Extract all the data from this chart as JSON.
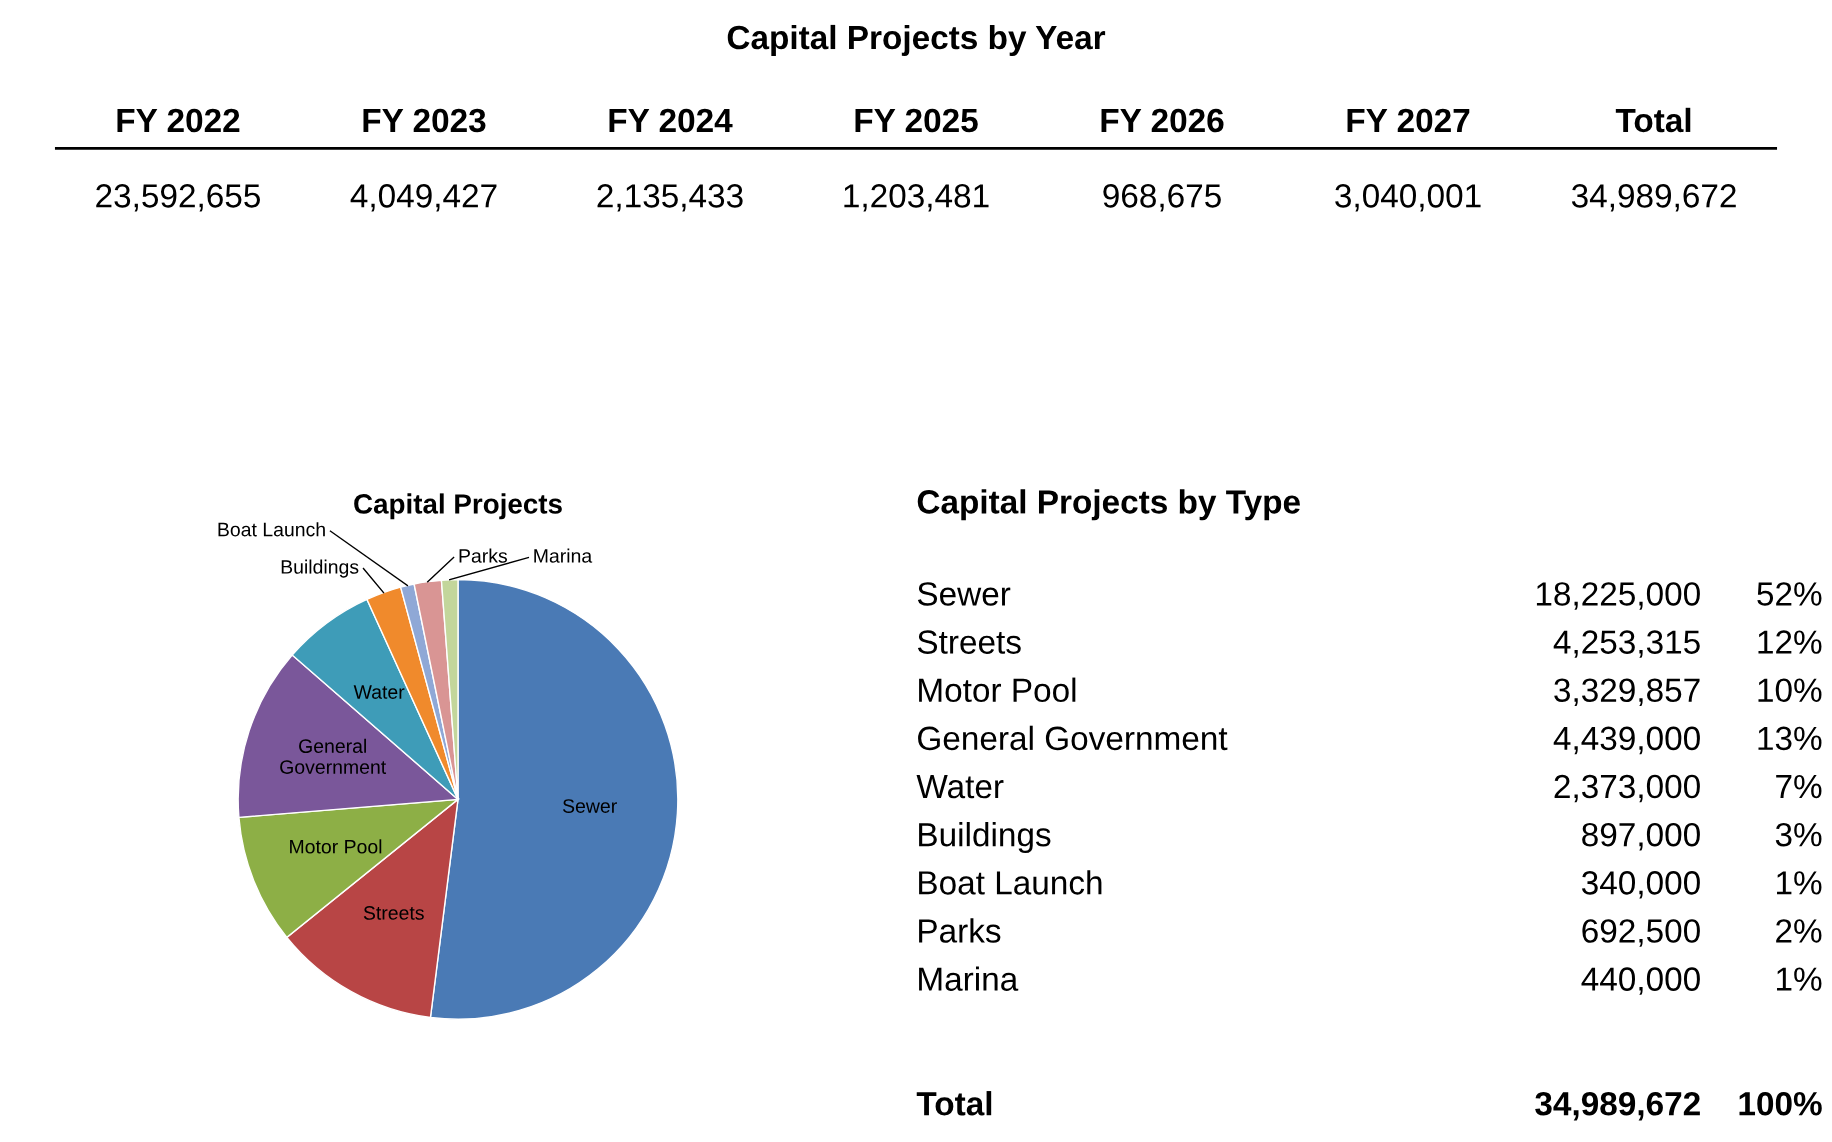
{
  "chart_data": [
    {
      "type": "other",
      "title": "Capital Projects by Year",
      "categories": [
        "FY 2022",
        "FY 2023",
        "FY 2024",
        "FY 2025",
        "FY 2026",
        "FY 2027",
        "Total"
      ],
      "values": [
        23592655,
        4049427,
        2135433,
        1203481,
        968675,
        3040001,
        34989672
      ],
      "value_labels": [
        "23,592,655",
        "4,049,427",
        "2,135,433",
        "1,203,481",
        "968,675",
        "3,040,001",
        "34,989,672"
      ]
    },
    {
      "type": "pie",
      "title": "Capital Projects",
      "categories": [
        "Sewer",
        "Streets",
        "Motor Pool",
        "General Government",
        "Water",
        "Buildings",
        "Boat Launch",
        "Parks",
        "Marina"
      ],
      "values": [
        52,
        12.2,
        9.5,
        12.7,
        6.8,
        2.6,
        1,
        2,
        1.2
      ],
      "colors": [
        "#4a7ab5",
        "#b84545",
        "#8daf46",
        "#7a579a",
        "#3e9cb8",
        "#f08a2c",
        "#8fa8d6",
        "#d99594",
        "#c3d69b"
      ]
    },
    {
      "type": "other",
      "title": "Capital Projects by Type",
      "categories": [
        "Sewer",
        "Streets",
        "Motor Pool",
        "General Government",
        "Water",
        "Buildings",
        "Boat Launch",
        "Parks",
        "Marina"
      ],
      "series": [
        {
          "values": [
            18225000,
            4253315,
            3329857,
            4439000,
            2373000,
            897000,
            340000,
            692500,
            440000
          ],
          "value_labels": [
            "18,225,000",
            "4,253,315",
            "3,329,857",
            "4,439,000",
            "2,373,000",
            "897,000",
            "340,000",
            "692,500",
            "440,000"
          ]
        },
        {
          "values": [
            52,
            12,
            10,
            13,
            7,
            3,
            1,
            2,
            1
          ],
          "value_labels": [
            "52%",
            "12%",
            "10%",
            "13%",
            "7%",
            "3%",
            "1%",
            "2%",
            "1%"
          ]
        }
      ],
      "annotations": [
        "Total"
      ],
      "totals": [
        "34,989,672",
        "100%"
      ]
    }
  ]
}
